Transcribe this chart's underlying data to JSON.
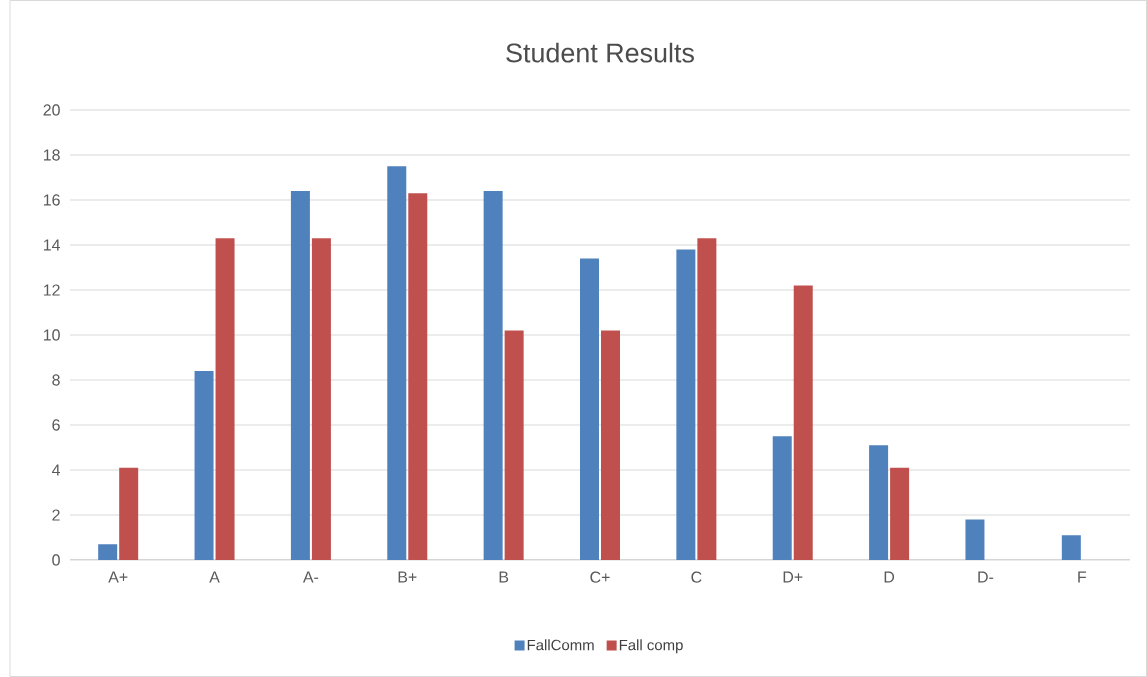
{
  "chart_data": {
    "type": "bar",
    "title": "Student Results",
    "categories": [
      "A+",
      "A",
      "A-",
      "B+",
      "B",
      "C+",
      "C",
      "D+",
      "D",
      "D-",
      "F"
    ],
    "series": [
      {
        "name": "FallComm",
        "color": "#4f81bd",
        "values": [
          0.7,
          8.4,
          16.4,
          17.5,
          16.4,
          13.4,
          13.8,
          5.5,
          5.1,
          1.8,
          1.1
        ]
      },
      {
        "name": "Fall comp",
        "color": "#c0504d",
        "values": [
          4.1,
          14.3,
          14.3,
          16.3,
          10.2,
          10.2,
          14.3,
          12.2,
          4.1,
          0,
          0
        ]
      }
    ],
    "ylim": [
      0,
      20
    ],
    "yticks": [
      0,
      2,
      4,
      6,
      8,
      10,
      12,
      14,
      16,
      18,
      20
    ],
    "grid": "y",
    "legend": "bottom"
  }
}
